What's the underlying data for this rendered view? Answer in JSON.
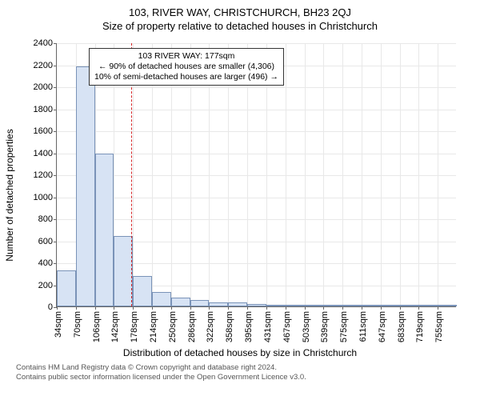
{
  "title_line1": "103, RIVER WAY, CHRISTCHURCH, BH23 2QJ",
  "title_line2": "Size of property relative to detached houses in Christchurch",
  "ylabel": "Number of detached properties",
  "xlabel": "Distribution of detached houses by size in Christchurch",
  "chart": {
    "type": "histogram",
    "ymax": 2400,
    "ytick_step": 200,
    "x_categories": [
      "34sqm",
      "70sqm",
      "106sqm",
      "142sqm",
      "178sqm",
      "214sqm",
      "250sqm",
      "286sqm",
      "322sqm",
      "358sqm",
      "395sqm",
      "431sqm",
      "467sqm",
      "503sqm",
      "539sqm",
      "575sqm",
      "611sqm",
      "647sqm",
      "683sqm",
      "719sqm",
      "755sqm"
    ],
    "values": [
      330,
      2180,
      1390,
      640,
      280,
      130,
      80,
      60,
      40,
      35,
      20,
      10,
      10,
      8,
      5,
      5,
      3,
      3,
      2,
      2,
      2
    ],
    "bar_fill": "#d7e3f4",
    "bar_border": "#7a93b8",
    "grid_color": "#e8e8e8",
    "background_color": "#ffffff",
    "marker": {
      "x_index_after": 3.9,
      "color": "#d62728"
    }
  },
  "annotation": {
    "line1": "103 RIVER WAY: 177sqm",
    "line2": "← 90% of detached houses are smaller (4,306)",
    "line3": "10% of semi-detached houses are larger (496) →"
  },
  "footer_line1": "Contains HM Land Registry data © Crown copyright and database right 2024.",
  "footer_line2": "Contains public sector information licensed under the Open Government Licence v3.0."
}
